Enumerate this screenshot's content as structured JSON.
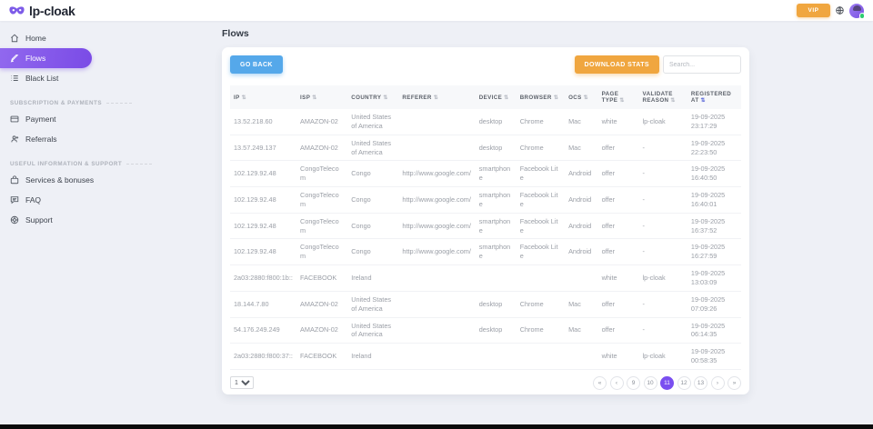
{
  "header": {
    "logo_text": "lp-cloak",
    "vip_label": "VIP",
    "icons": {
      "logo": "mask-icon",
      "language": "globe-icon",
      "avatar": "user-avatar",
      "status": "online-dot"
    }
  },
  "sidebar": {
    "sections": [
      {
        "items": [
          {
            "label": "Home",
            "icon": "home-icon",
            "active": false
          },
          {
            "label": "Flows",
            "icon": "flows-icon",
            "active": true
          },
          {
            "label": "Black List",
            "icon": "blacklist-icon",
            "active": false
          }
        ]
      },
      {
        "title": "SUBSCRIPTION & PAYMENTS",
        "items": [
          {
            "label": "Payment",
            "icon": "payment-icon"
          },
          {
            "label": "Referrals",
            "icon": "referrals-icon"
          }
        ]
      },
      {
        "title": "USEFUL INFORMATION & SUPPORT",
        "items": [
          {
            "label": "Services & bonuses",
            "icon": "services-icon"
          },
          {
            "label": "FAQ",
            "icon": "faq-icon"
          },
          {
            "label": "Support",
            "icon": "support-icon"
          }
        ]
      }
    ]
  },
  "main": {
    "page_title": "Flows",
    "toolbar": {
      "go_back": "GO BACK",
      "download_stats": "DOWNLOAD STATS",
      "search_placeholder": "Search..."
    },
    "table": {
      "columns": [
        {
          "label": "IP",
          "sort_active": false
        },
        {
          "label": "ISP",
          "sort_active": false
        },
        {
          "label": "COUNTRY",
          "sort_active": false
        },
        {
          "label": "REFERER",
          "sort_active": false
        },
        {
          "label": "DEVICE",
          "sort_active": false
        },
        {
          "label": "BROWSER",
          "sort_active": false
        },
        {
          "label": "OCS",
          "sort_active": false
        },
        {
          "label": "PAGE TYPE",
          "sort_active": false
        },
        {
          "label": "VALIDATE REASON",
          "sort_active": false
        },
        {
          "label": "REGISTERED AT",
          "sort_active": true
        }
      ],
      "rows": [
        {
          "ip": "13.52.218.60",
          "isp": "AMAZON-02",
          "country": "United States of America",
          "referer": "",
          "device": "desktop",
          "browser": "Chrome",
          "ocs": "Mac",
          "page_type": "white",
          "validate_reason": "lp-cloak",
          "registered_date": "19-09-2025",
          "registered_time": "23:17:29"
        },
        {
          "ip": "13.57.249.137",
          "isp": "AMAZON-02",
          "country": "United States of America",
          "referer": "",
          "device": "desktop",
          "browser": "Chrome",
          "ocs": "Mac",
          "page_type": "offer",
          "validate_reason": "-",
          "registered_date": "19-09-2025",
          "registered_time": "22:23:50"
        },
        {
          "ip": "102.129.92.48",
          "isp": "CongoTelecom",
          "country": "Congo",
          "referer": "http://www.google.com/",
          "device": "smartphone",
          "browser": "Facebook Lite",
          "ocs": "Android",
          "page_type": "offer",
          "validate_reason": "-",
          "registered_date": "19-09-2025",
          "registered_time": "16:40:50"
        },
        {
          "ip": "102.129.92.48",
          "isp": "CongoTelecom",
          "country": "Congo",
          "referer": "http://www.google.com/",
          "device": "smartphone",
          "browser": "Facebook Lite",
          "ocs": "Android",
          "page_type": "offer",
          "validate_reason": "-",
          "registered_date": "19-09-2025",
          "registered_time": "16:40:01"
        },
        {
          "ip": "102.129.92.48",
          "isp": "CongoTelecom",
          "country": "Congo",
          "referer": "http://www.google.com/",
          "device": "smartphone",
          "browser": "Facebook Lite",
          "ocs": "Android",
          "page_type": "offer",
          "validate_reason": "-",
          "registered_date": "19-09-2025",
          "registered_time": "16:37:52"
        },
        {
          "ip": "102.129.92.48",
          "isp": "CongoTelecom",
          "country": "Congo",
          "referer": "http://www.google.com/",
          "device": "smartphone",
          "browser": "Facebook Lite",
          "ocs": "Android",
          "page_type": "offer",
          "validate_reason": "-",
          "registered_date": "19-09-2025",
          "registered_time": "16:27:59"
        },
        {
          "ip": "2a03:2880:f800:1b::",
          "isp": "FACEBOOK",
          "country": "Ireland",
          "referer": "",
          "device": "",
          "browser": "",
          "ocs": "",
          "page_type": "white",
          "validate_reason": "lp-cloak",
          "registered_date": "19-09-2025",
          "registered_time": "13:03:09"
        },
        {
          "ip": "18.144.7.80",
          "isp": "AMAZON-02",
          "country": "United States of America",
          "referer": "",
          "device": "desktop",
          "browser": "Chrome",
          "ocs": "Mac",
          "page_type": "offer",
          "validate_reason": "-",
          "registered_date": "19-09-2025",
          "registered_time": "07:09:26"
        },
        {
          "ip": "54.176.249.249",
          "isp": "AMAZON-02",
          "country": "United States of America",
          "referer": "",
          "device": "desktop",
          "browser": "Chrome",
          "ocs": "Mac",
          "page_type": "offer",
          "validate_reason": "-",
          "registered_date": "19-09-2025",
          "registered_time": "06:14:35"
        },
        {
          "ip": "2a03:2880:f800:37::",
          "isp": "FACEBOOK",
          "country": "Ireland",
          "referer": "",
          "device": "",
          "browser": "",
          "ocs": "",
          "page_type": "white",
          "validate_reason": "lp-cloak",
          "registered_date": "19-09-2025",
          "registered_time": "00:58:35"
        }
      ]
    },
    "pagination": {
      "per_page": "10",
      "buttons": [
        {
          "label": "«",
          "name": "first-page"
        },
        {
          "label": "‹",
          "name": "prev-page"
        },
        {
          "label": "9",
          "name": "page-9"
        },
        {
          "label": "10",
          "name": "page-10"
        },
        {
          "label": "11",
          "name": "page-11",
          "active": true
        },
        {
          "label": "12",
          "name": "page-12"
        },
        {
          "label": "13",
          "name": "page-13"
        },
        {
          "label": "›",
          "name": "next-page"
        },
        {
          "label": "»",
          "name": "last-page"
        }
      ]
    }
  },
  "colors": {
    "accent_purple": "#7a4ff0",
    "sidebar_gradient_start": "#9168ee",
    "sidebar_gradient_end": "#7a4be6",
    "button_blue": "#55a8ea",
    "button_orange": "#f0a63f",
    "online_green": "#2ecc71",
    "active_sort": "#5a67d8"
  }
}
